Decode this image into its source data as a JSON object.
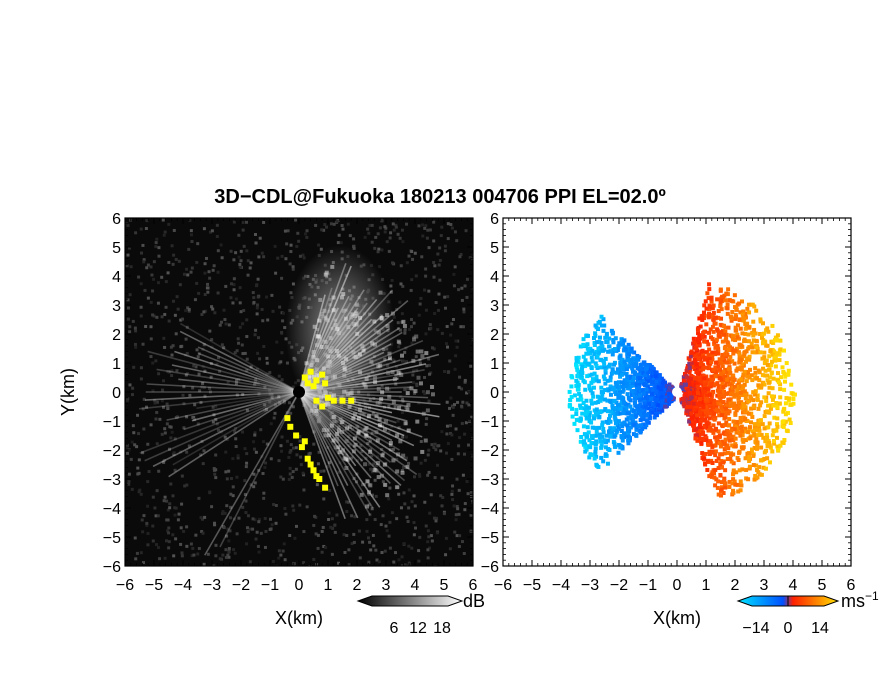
{
  "title": "3D−CDL@Fukuoka 180213 004706 PPI EL=02.0º",
  "chart_data": [
    {
      "type": "heatmap",
      "panel": "reflectivity",
      "xlabel": "X(km)",
      "ylabel": "Y(km)",
      "xlim": [
        -6,
        6
      ],
      "ylim": [
        -6,
        6
      ],
      "xticks": [
        "−6",
        "−5",
        "−4",
        "−3",
        "−2",
        "−1",
        "0",
        "1",
        "2",
        "3",
        "4",
        "5",
        "6"
      ],
      "yticks": [
        "−6",
        "−5",
        "−4",
        "−3",
        "−2",
        "−1",
        "0",
        "1",
        "2",
        "3",
        "4",
        "5",
        "6"
      ],
      "colorbar": {
        "unit": "dB",
        "ticks": [
          "6",
          "12",
          "18"
        ],
        "range": [
          0,
          21
        ],
        "colormap": "grayscale"
      },
      "highlight_color": "#ffff00",
      "background_color": "#000000"
    },
    {
      "type": "heatmap",
      "panel": "doppler_velocity",
      "xlabel": "X(km)",
      "ylabel": "",
      "xlim": [
        -6,
        6
      ],
      "ylim": [
        -6,
        6
      ],
      "xticks": [
        "−6",
        "−5",
        "−4",
        "−3",
        "−2",
        "−1",
        "0",
        "1",
        "2",
        "3",
        "4",
        "5",
        "6"
      ],
      "yticks": [
        "−6",
        "−5",
        "−4",
        "−3",
        "−2",
        "−1",
        "0",
        "1",
        "2",
        "3",
        "4",
        "5",
        "6"
      ],
      "colorbar": {
        "unit": "ms",
        "unit_exponent": "−1",
        "ticks": [
          "−14",
          "0",
          "14"
        ],
        "range": [
          -21,
          21
        ],
        "colormap": [
          "#00e5ff",
          "#0050ff",
          "#ff2000",
          "#ffe000"
        ]
      },
      "background_color": "#ffffff"
    }
  ]
}
